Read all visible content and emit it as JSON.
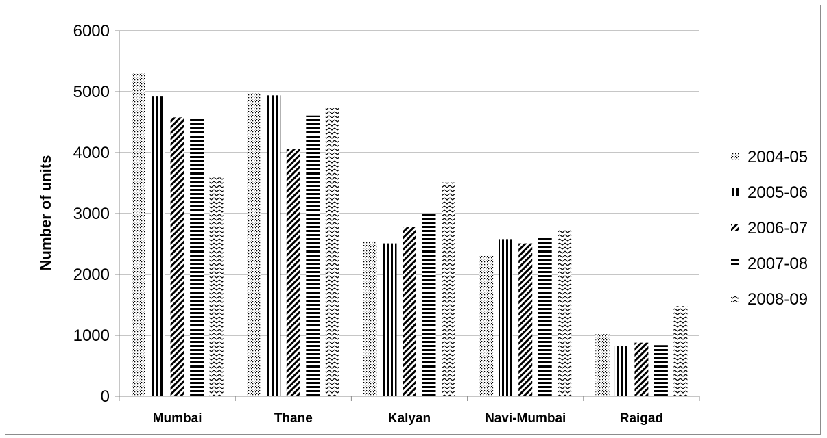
{
  "chart_data": {
    "type": "bar",
    "title": "",
    "xlabel": "",
    "ylabel": "Number of units",
    "ylim": [
      0,
      6000
    ],
    "yticks": [
      0,
      1000,
      2000,
      3000,
      4000,
      5000,
      6000
    ],
    "grid": true,
    "legend_position": "right",
    "categories": [
      "Mumbai",
      "Thane",
      "Kalyan",
      "Navi-Mumbai",
      "Raigad"
    ],
    "series": [
      {
        "name": "2004-05",
        "pattern": "dots",
        "values": [
          5320,
          4970,
          2540,
          2310,
          1020
        ]
      },
      {
        "name": "2005-06",
        "pattern": "vertical",
        "values": [
          4920,
          4940,
          2510,
          2580,
          820
        ]
      },
      {
        "name": "2006-07",
        "pattern": "diagonal",
        "values": [
          4580,
          4060,
          2780,
          2510,
          880
        ]
      },
      {
        "name": "2007-08",
        "pattern": "horizontal",
        "values": [
          4580,
          4610,
          3000,
          2610,
          840
        ]
      },
      {
        "name": "2008-09",
        "pattern": "zigzag",
        "values": [
          3590,
          4730,
          3510,
          2740,
          1480
        ]
      }
    ]
  },
  "colors": {
    "ink": "#000000",
    "grid": "#8c8c8c",
    "frame": "#8c8c8c"
  }
}
